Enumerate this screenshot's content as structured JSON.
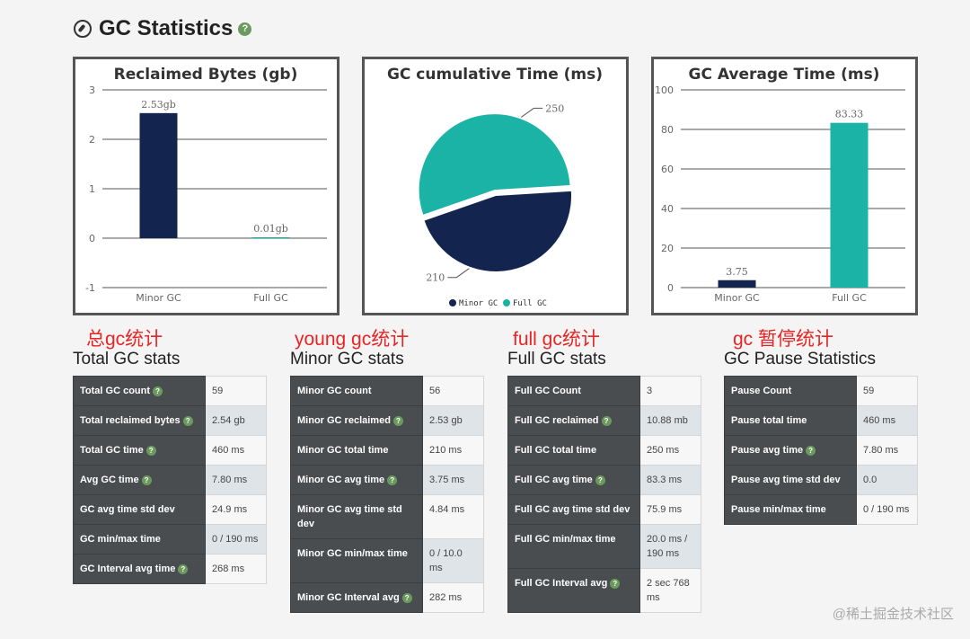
{
  "header": {
    "title": "GC Statistics",
    "help": "?"
  },
  "help_symbol": "?",
  "colors": {
    "navy": "#13254f",
    "teal": "#1bb3a6",
    "table_key_bg": "#4a4d50",
    "annotation_red": "#e82424"
  },
  "chart_data": [
    {
      "type": "bar",
      "title": "Reclaimed Bytes (gb)",
      "categories": [
        "Minor GC",
        "Full GC"
      ],
      "values": [
        2.53,
        0.01
      ],
      "data_labels": [
        "2.53gb",
        "0.01gb"
      ],
      "ylim": [
        -1,
        3
      ],
      "yticks": [
        "3",
        "2",
        "1",
        "0",
        "-1"
      ],
      "colors": [
        "#13254f",
        "#1bb3a6"
      ]
    },
    {
      "type": "pie",
      "title": "GC cumulative Time (ms)",
      "slices": [
        {
          "label": "Minor GC",
          "value": 210
        },
        {
          "label": "Full GC",
          "value": 250
        }
      ],
      "data_labels": [
        "210",
        "250"
      ],
      "legend": [
        "Minor GC",
        "Full GC"
      ],
      "colors": [
        "#13254f",
        "#1bb3a6"
      ]
    },
    {
      "type": "bar",
      "title": "GC Average Time (ms)",
      "categories": [
        "Minor GC",
        "Full GC"
      ],
      "values": [
        3.75,
        83.33
      ],
      "data_labels": [
        "3.75",
        "83.33"
      ],
      "ylim": [
        0,
        100
      ],
      "yticks": [
        "100",
        "80",
        "60",
        "40",
        "20",
        "0"
      ],
      "colors": [
        "#13254f",
        "#1bb3a6"
      ]
    }
  ],
  "sections": {
    "total": {
      "annotation": "总gc统计",
      "title": "Total GC stats",
      "rows": [
        {
          "label": "Total GC count",
          "value": "59",
          "help": true
        },
        {
          "label": "Total reclaimed bytes",
          "value": "2.54 gb",
          "help": true
        },
        {
          "label": "Total GC time",
          "value": "460 ms",
          "help": true
        },
        {
          "label": "Avg GC time",
          "value": "7.80 ms",
          "help": true
        },
        {
          "label": "GC avg time std dev",
          "value": "24.9 ms",
          "help": false
        },
        {
          "label": "GC min/max time",
          "value": "0 / 190 ms",
          "help": false
        },
        {
          "label": "GC Interval avg time",
          "value": "268 ms",
          "help": true
        }
      ]
    },
    "minor": {
      "annotation": "young gc统计",
      "title": "Minor GC stats",
      "rows": [
        {
          "label": "Minor GC count",
          "value": "56",
          "help": false
        },
        {
          "label": "Minor GC reclaimed",
          "value": "2.53 gb",
          "help": true
        },
        {
          "label": "Minor GC total time",
          "value": "210 ms",
          "help": false
        },
        {
          "label": "Minor GC avg time",
          "value": "3.75 ms",
          "help": true
        },
        {
          "label": "Minor GC avg time std dev",
          "value": "4.84 ms",
          "help": false
        },
        {
          "label": "Minor GC min/max time",
          "value": "0 / 10.0 ms",
          "help": false
        },
        {
          "label": "Minor GC Interval avg",
          "value": "282 ms",
          "help": true
        }
      ]
    },
    "full": {
      "annotation": "full gc统计",
      "title": "Full GC stats",
      "rows": [
        {
          "label": "Full GC Count",
          "value": "3",
          "help": false
        },
        {
          "label": "Full GC reclaimed",
          "value": "10.88 mb",
          "help": true
        },
        {
          "label": "Full GC total time",
          "value": "250 ms",
          "help": false
        },
        {
          "label": "Full GC avg time",
          "value": "83.3 ms",
          "help": true
        },
        {
          "label": "Full GC avg time std dev",
          "value": "75.9 ms",
          "help": false
        },
        {
          "label": "Full GC min/max time",
          "value": "20.0 ms / 190 ms",
          "help": false
        },
        {
          "label": "Full GC Interval avg",
          "value": "2 sec 768 ms",
          "help": true
        }
      ]
    },
    "pause": {
      "annotation": "gc 暂停统计",
      "title": "GC Pause Statistics",
      "rows": [
        {
          "label": "Pause Count",
          "value": "59",
          "help": false
        },
        {
          "label": "Pause total time",
          "value": "460 ms",
          "help": false
        },
        {
          "label": "Pause avg time",
          "value": "7.80 ms",
          "help": true
        },
        {
          "label": "Pause avg time std dev",
          "value": "0.0",
          "help": false
        },
        {
          "label": "Pause min/max time",
          "value": "0 / 190 ms",
          "help": false
        }
      ]
    }
  },
  "watermark": "@稀土掘金技术社区"
}
